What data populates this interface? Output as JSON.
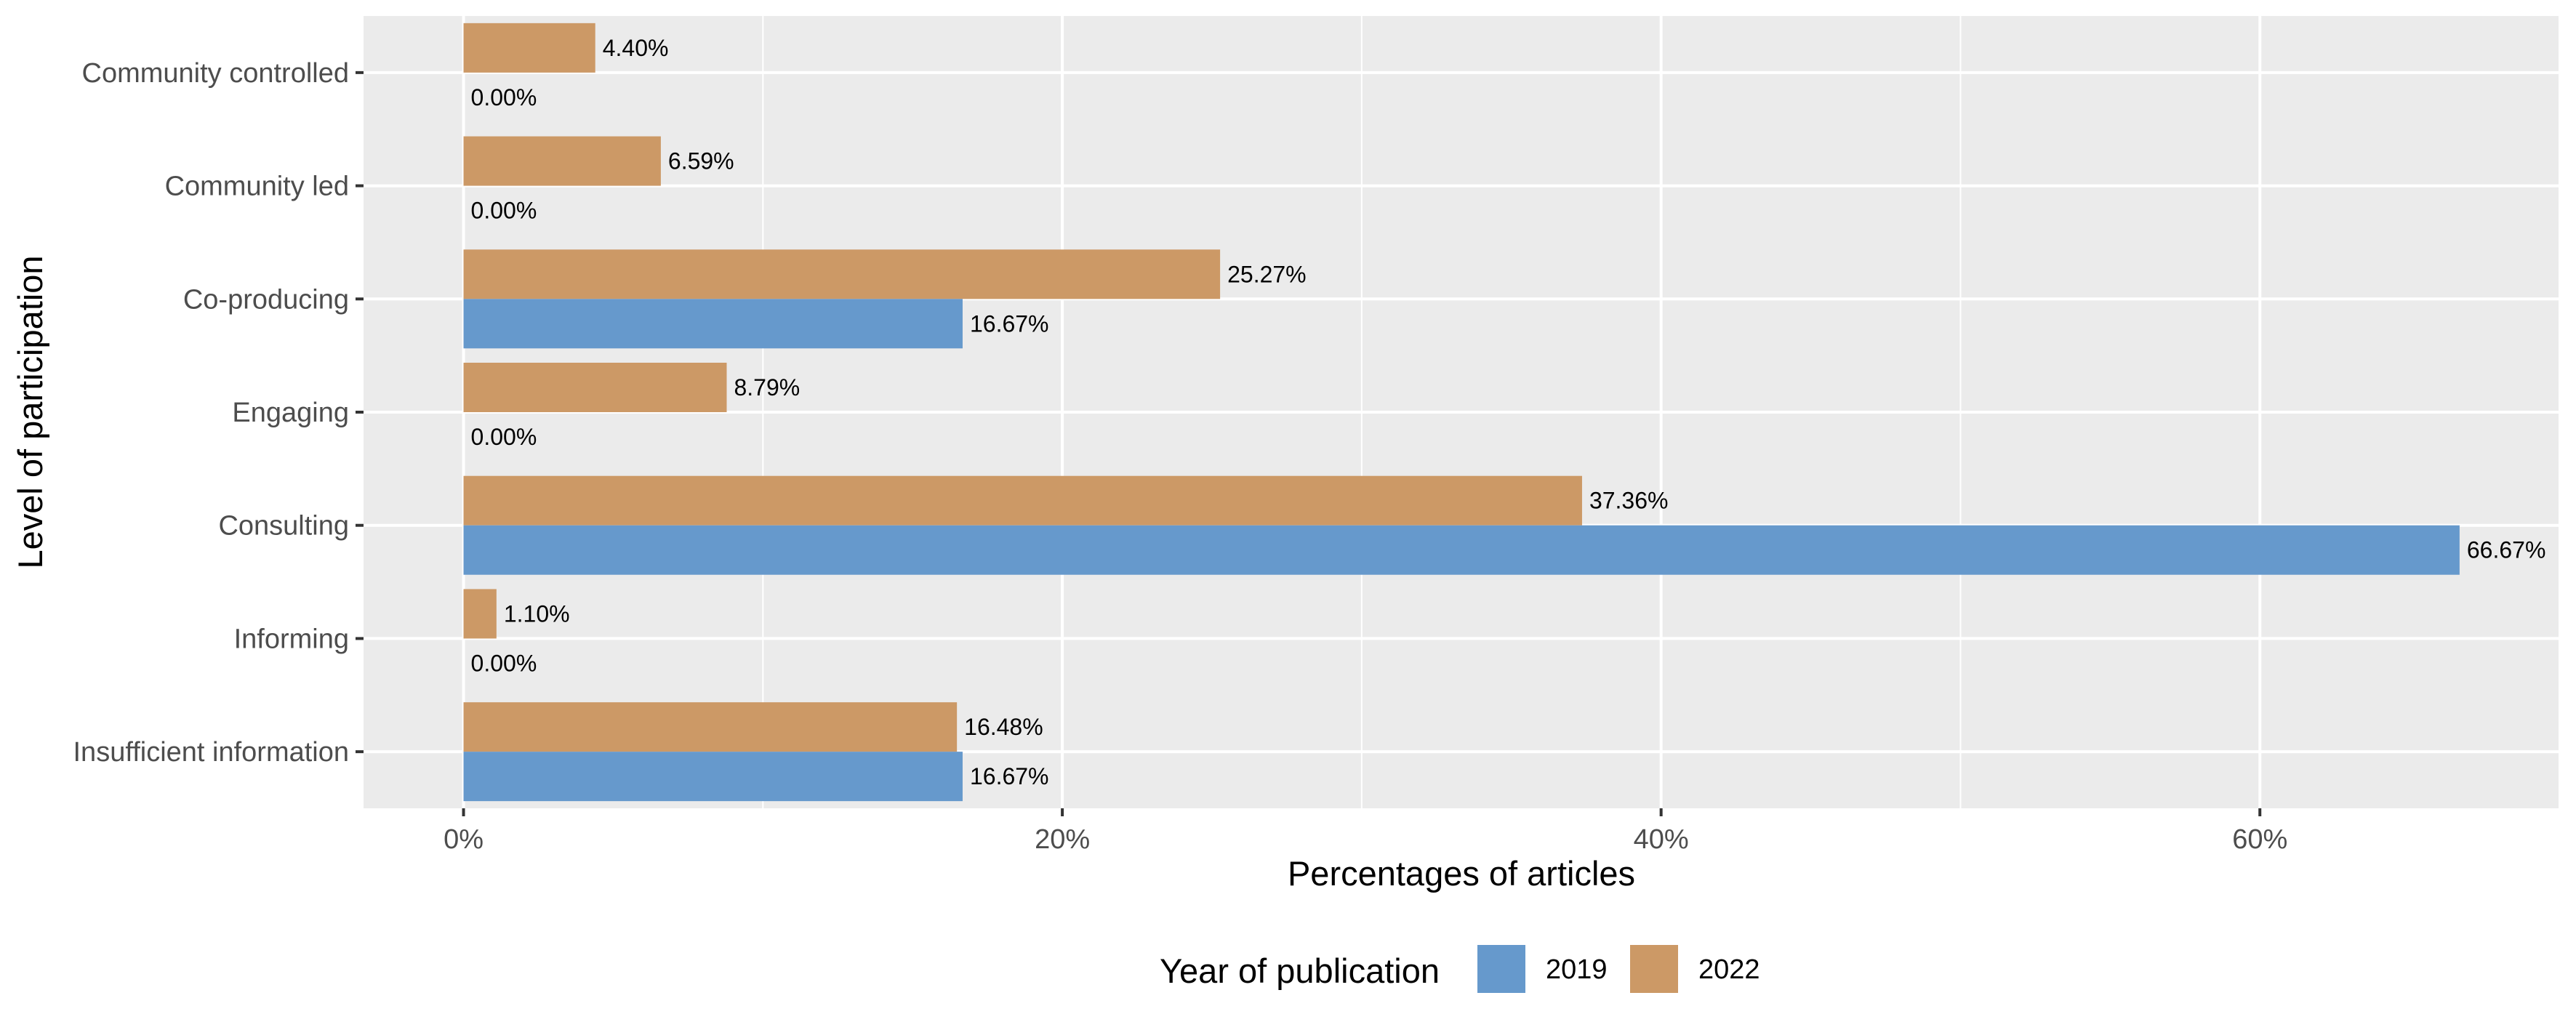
{
  "chart_data": {
    "type": "bar",
    "orientation": "horizontal",
    "categories": [
      "Community controlled",
      "Community led",
      "Co-producing",
      "Engaging",
      "Consulting",
      "Informing",
      "Insufficient information"
    ],
    "series": [
      {
        "name": "2019",
        "color": "#6699cc",
        "values": [
          0.0,
          0.0,
          16.67,
          0.0,
          66.67,
          0.0,
          16.67
        ],
        "labels": [
          "0.00%",
          "0.00%",
          "16.67%",
          "0.00%",
          "66.67%",
          "0.00%",
          "16.67%"
        ]
      },
      {
        "name": "2022",
        "color": "#cc9966",
        "values": [
          4.4,
          6.59,
          25.27,
          8.79,
          37.36,
          1.1,
          16.48
        ],
        "labels": [
          "4.40%",
          "6.59%",
          "25.27%",
          "8.79%",
          "37.36%",
          "1.10%",
          "16.48%"
        ]
      }
    ],
    "xlabel": "Percentages of articles",
    "ylabel": "Level of participation",
    "xticks": [
      {
        "value": 0,
        "label": "0%"
      },
      {
        "value": 20,
        "label": "20%"
      },
      {
        "value": 40,
        "label": "40%"
      },
      {
        "value": 60,
        "label": "60%"
      }
    ],
    "xlim": [
      -3.34,
      70.0
    ],
    "grid": true,
    "legend": {
      "title": "Year of publication",
      "position": "bottom"
    },
    "panel_color": "#ebebeb",
    "grid_color": "#ffffff"
  }
}
